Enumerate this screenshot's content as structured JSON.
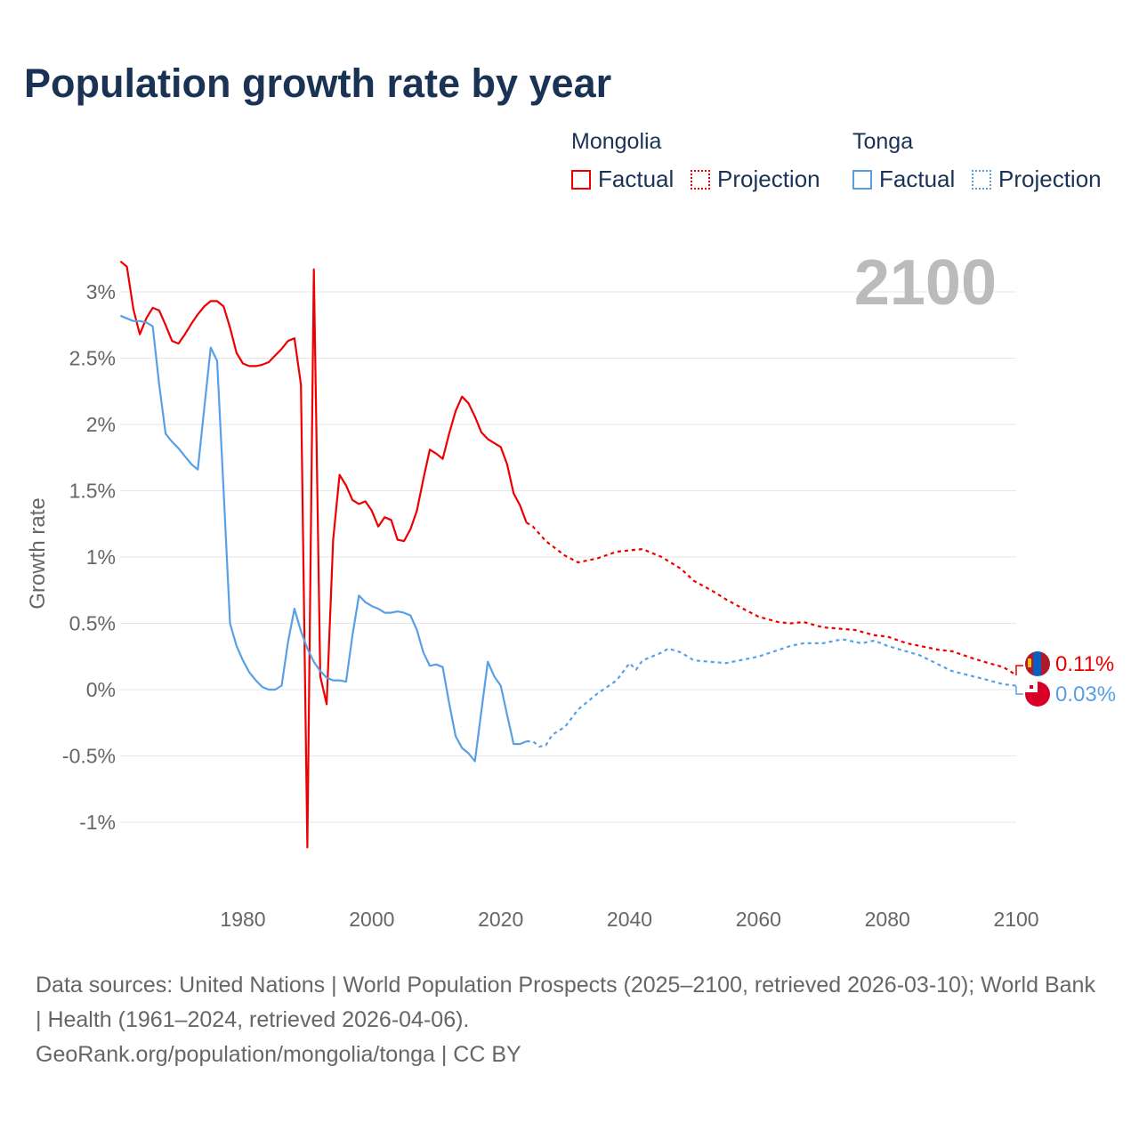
{
  "title": "Population growth rate by year",
  "legend": {
    "countries": [
      {
        "name": "Mongolia",
        "color": "#ee0000",
        "factual": "Factual",
        "projection": "Projection"
      },
      {
        "name": "Tonga",
        "color": "#58a0e6",
        "factual": "Factual",
        "projection": "Projection"
      }
    ]
  },
  "year_label": "2100",
  "end_labels": [
    "0.11%",
    "0.03%"
  ],
  "footer": {
    "sources": "Data sources: United Nations | World Population Prospects (2025–2100, retrieved 2026-03-10); World Bank | Health (1961–2024, retrieved 2026-04-06).",
    "credit": "GeoRank.org/population/mongolia/tonga | CC BY"
  },
  "chart_data": {
    "type": "line",
    "title": "Population growth rate by year",
    "xlabel": "",
    "ylabel": "Growth rate",
    "xlim": [
      1961,
      2100
    ],
    "ylim": [
      -1.4,
      3.3
    ],
    "xticks": [
      1980,
      2000,
      2020,
      2040,
      2060,
      2080,
      2100
    ],
    "yticks": [
      -1,
      -0.5,
      0,
      0.5,
      1,
      1.5,
      2,
      2.5,
      3
    ],
    "ytick_labels": [
      "-1%",
      "-0.5%",
      "0%",
      "0.5%",
      "1%",
      "1.5%",
      "2%",
      "2.5%",
      "3%"
    ],
    "xtick_labels": [
      "1980",
      "2000",
      "2020",
      "2040",
      "2060",
      "2080",
      "2100"
    ],
    "grid": true,
    "series": [
      {
        "name": "Mongolia Factual",
        "color": "#ee0000",
        "style": "solid",
        "x_start": 1961,
        "values": [
          3.23,
          3.19,
          2.87,
          2.68,
          2.8,
          2.88,
          2.86,
          2.75,
          2.63,
          2.61,
          2.68,
          2.76,
          2.83,
          2.89,
          2.93,
          2.93,
          2.89,
          2.73,
          2.54,
          2.46,
          2.44,
          2.44,
          2.45,
          2.47,
          2.52,
          2.57,
          2.63,
          2.65,
          2.3,
          -1.19,
          3.17,
          0.1,
          -0.11,
          1.13,
          1.62,
          1.54,
          1.43,
          1.4,
          1.42,
          1.35,
          1.23,
          1.3,
          1.28,
          1.13,
          1.12,
          1.21,
          1.35,
          1.59,
          1.81,
          1.78,
          1.74,
          1.93,
          2.1,
          2.21,
          2.16,
          2.06,
          1.94,
          1.89,
          1.86,
          1.83,
          1.7,
          1.48,
          1.39,
          1.26
        ]
      },
      {
        "name": "Mongolia Projection",
        "color": "#ee0000",
        "style": "dotted",
        "x": [
          2024,
          2025,
          2027,
          2030,
          2032,
          2035,
          2038,
          2040,
          2042,
          2045,
          2048,
          2050,
          2053,
          2055,
          2058,
          2060,
          2063,
          2065,
          2067,
          2070,
          2075,
          2078,
          2080,
          2083,
          2085,
          2088,
          2090,
          2093,
          2095,
          2098,
          2100
        ],
        "values": [
          1.26,
          1.23,
          1.12,
          1.01,
          0.96,
          0.99,
          1.04,
          1.05,
          1.06,
          1.0,
          0.91,
          0.82,
          0.74,
          0.68,
          0.6,
          0.55,
          0.51,
          0.5,
          0.51,
          0.47,
          0.45,
          0.41,
          0.4,
          0.35,
          0.33,
          0.3,
          0.29,
          0.24,
          0.21,
          0.17,
          0.11
        ]
      },
      {
        "name": "Tonga Factual",
        "color": "#58a0e6",
        "style": "solid",
        "x_start": 1961,
        "values": [
          2.82,
          2.8,
          2.78,
          2.78,
          2.77,
          2.74,
          2.3,
          1.93,
          1.87,
          1.82,
          1.76,
          1.7,
          1.66,
          2.12,
          2.58,
          2.48,
          1.5,
          0.5,
          0.33,
          0.22,
          0.13,
          0.07,
          0.02,
          0.0,
          0.0,
          0.03,
          0.36,
          0.61,
          0.44,
          0.31,
          0.21,
          0.14,
          0.09,
          0.07,
          0.07,
          0.06,
          0.41,
          0.71,
          0.66,
          0.63,
          0.61,
          0.58,
          0.58,
          0.59,
          0.58,
          0.56,
          0.45,
          0.28,
          0.18,
          0.19,
          0.17,
          -0.1,
          -0.35,
          -0.44,
          -0.48,
          -0.54,
          -0.16,
          0.21,
          0.1,
          0.03,
          -0.19,
          -0.41,
          -0.41,
          -0.39
        ]
      },
      {
        "name": "Tonga Projection",
        "color": "#58a0e6",
        "style": "dotted",
        "x": [
          2024,
          2025,
          2026,
          2027,
          2028,
          2030,
          2032,
          2035,
          2038,
          2040,
          2041,
          2042,
          2045,
          2046,
          2048,
          2050,
          2055,
          2060,
          2065,
          2067,
          2070,
          2073,
          2076,
          2078,
          2080,
          2085,
          2090,
          2095,
          2098,
          2100
        ],
        "values": [
          -0.39,
          -0.39,
          -0.43,
          -0.42,
          -0.34,
          -0.28,
          -0.15,
          -0.03,
          0.07,
          0.2,
          0.15,
          0.22,
          0.28,
          0.31,
          0.28,
          0.22,
          0.2,
          0.25,
          0.33,
          0.35,
          0.35,
          0.38,
          0.35,
          0.37,
          0.33,
          0.26,
          0.14,
          0.08,
          0.04,
          0.03
        ]
      }
    ]
  }
}
